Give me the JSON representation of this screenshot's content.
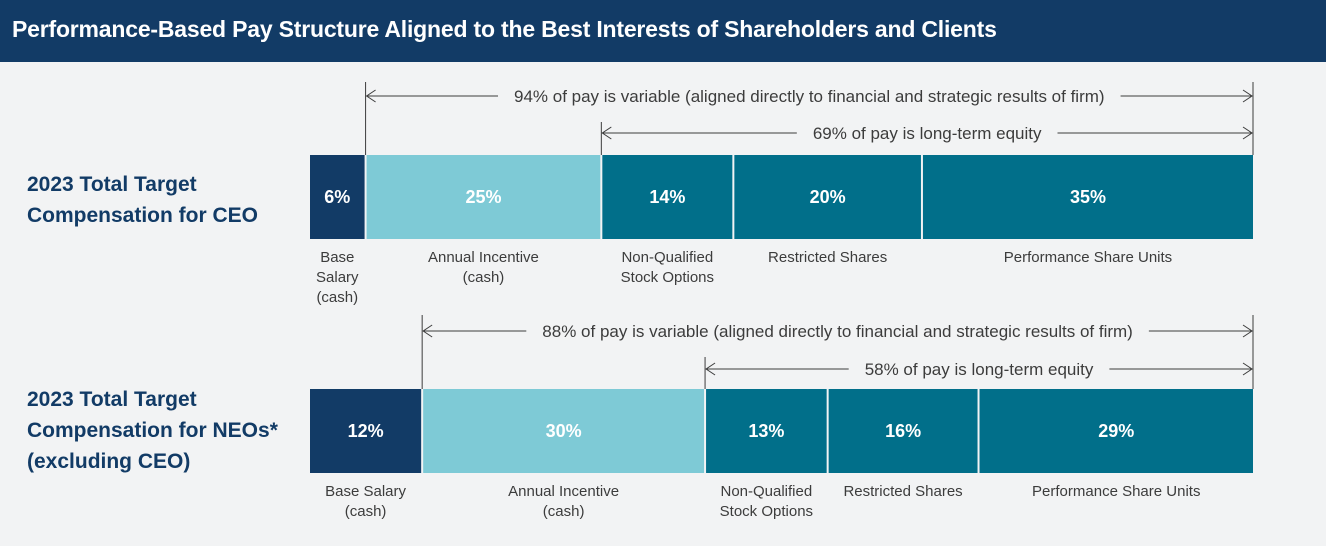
{
  "header": {
    "title": "Performance-Based Pay Structure Aligned to the Best Interests of Shareholders and Clients"
  },
  "colors": {
    "header_bg": "#123b66",
    "base_salary": "#123b66",
    "annual_incentive": "#7ecad6",
    "equity": "#016f8a",
    "text": "#3c3c3c"
  },
  "chart_data": [
    {
      "type": "stacked-bar-horizontal",
      "title_lines": [
        "2023 Total Target",
        "Compensation for CEO"
      ],
      "unit": "%",
      "segments": [
        {
          "name": "Base Salary (cash)",
          "label_lines": [
            "Base",
            "Salary",
            "(cash)"
          ],
          "value": 6,
          "display": "6%",
          "color_key": "base_salary"
        },
        {
          "name": "Annual Incentive (cash)",
          "label_lines": [
            "Annual Incentive",
            "(cash)"
          ],
          "value": 25,
          "display": "25%",
          "color_key": "annual_incentive"
        },
        {
          "name": "Non-Qualified Stock Options",
          "label_lines": [
            "Non-Qualified",
            "Stock Options"
          ],
          "value": 14,
          "display": "14%",
          "color_key": "equity"
        },
        {
          "name": "Restricted Shares",
          "label_lines": [
            "Restricted Shares"
          ],
          "value": 20,
          "display": "20%",
          "color_key": "equity"
        },
        {
          "name": "Performance Share Units",
          "label_lines": [
            "Performance Share Units"
          ],
          "value": 35,
          "display": "35%",
          "color_key": "equity"
        }
      ],
      "annotations": [
        {
          "text": "94% of pay is variable (aligned directly to financial and strategic results of firm)",
          "start_segment": 1
        },
        {
          "text": "69% of pay is long-term equity",
          "start_segment": 2
        }
      ]
    },
    {
      "type": "stacked-bar-horizontal",
      "title_lines": [
        "2023 Total Target",
        "Compensation for NEOs*",
        "(excluding CEO)"
      ],
      "unit": "%",
      "segments": [
        {
          "name": "Base Salary (cash)",
          "label_lines": [
            "Base Salary",
            "(cash)"
          ],
          "value": 12,
          "display": "12%",
          "color_key": "base_salary"
        },
        {
          "name": "Annual Incentive (cash)",
          "label_lines": [
            "Annual Incentive",
            "(cash)"
          ],
          "value": 30,
          "display": "30%",
          "color_key": "annual_incentive"
        },
        {
          "name": "Non-Qualified Stock Options",
          "label_lines": [
            "Non-Qualified",
            "Stock Options"
          ],
          "value": 13,
          "display": "13%",
          "color_key": "equity"
        },
        {
          "name": "Restricted Shares",
          "label_lines": [
            "Restricted Shares"
          ],
          "value": 16,
          "display": "16%",
          "color_key": "equity"
        },
        {
          "name": "Performance Share Units",
          "label_lines": [
            "Performance Share Units"
          ],
          "value": 29,
          "display": "29%",
          "color_key": "equity"
        }
      ],
      "annotations": [
        {
          "text": "88% of pay is variable (aligned directly to financial and strategic results of firm)",
          "start_segment": 1
        },
        {
          "text": "58% of pay is long-term equity",
          "start_segment": 2
        }
      ]
    }
  ]
}
